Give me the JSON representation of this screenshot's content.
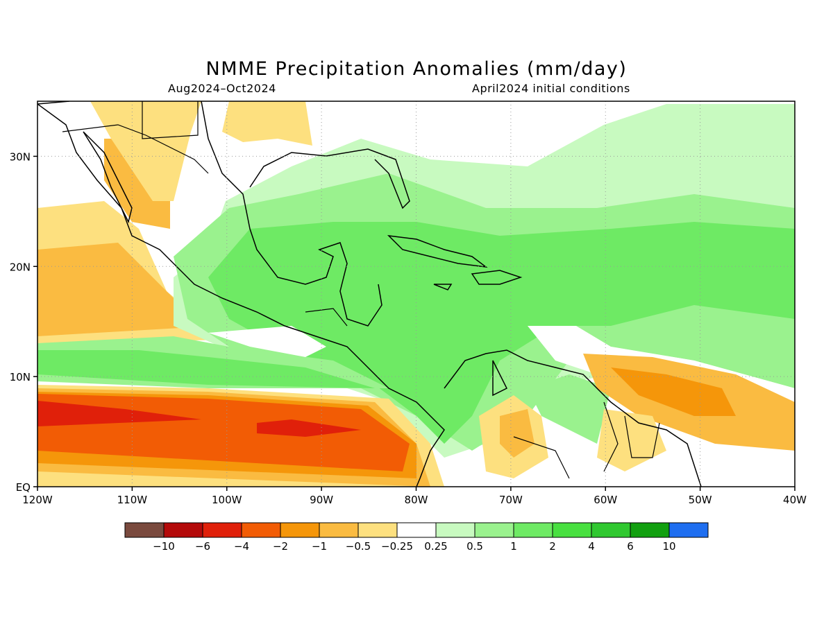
{
  "title": "NMME Precipitation Anomalies (mm/day)",
  "subtitle_left": "Aug2024–Oct2024",
  "subtitle_right": "April2024 initial conditions",
  "map": {
    "lon_range": [
      -120,
      -40
    ],
    "lat_range": [
      0,
      35
    ],
    "lat_labels": [
      "30N",
      "20N",
      "10N",
      "EQ"
    ],
    "lon_labels": [
      "120W",
      "110W",
      "100W",
      "90W",
      "80W",
      "70W",
      "60W",
      "50W",
      "40W"
    ],
    "grid": "dotted"
  },
  "colorbar": {
    "colors": [
      "#7a4a3e",
      "#b40a0a",
      "#e0200a",
      "#f25c05",
      "#f5960a",
      "#fabb41",
      "#fde07f",
      "#ffffff",
      "#c8fac0",
      "#9af28e",
      "#6eea64",
      "#48e040",
      "#30c830",
      "#12a010",
      "#1e6ef0"
    ],
    "labels": [
      "−10",
      "−6",
      "−4",
      "−2",
      "−1",
      "−0.5",
      "−0.25",
      "0.25",
      "0.5",
      "1",
      "2",
      "4",
      "6",
      "10"
    ]
  }
}
